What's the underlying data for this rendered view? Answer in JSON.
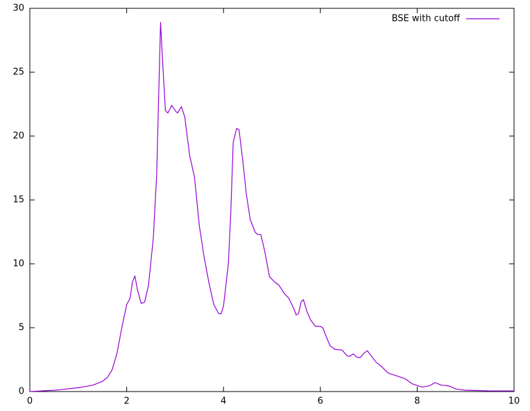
{
  "chart_data": {
    "type": "line",
    "x": [
      0,
      0.5,
      1.0,
      1.3,
      1.5,
      1.6,
      1.7,
      1.8,
      1.9,
      2.0,
      2.07,
      2.12,
      2.17,
      2.22,
      2.3,
      2.37,
      2.45,
      2.55,
      2.62,
      2.66,
      2.7,
      2.74,
      2.8,
      2.85,
      2.93,
      3.0,
      3.05,
      3.13,
      3.2,
      3.3,
      3.4,
      3.5,
      3.6,
      3.7,
      3.8,
      3.9,
      3.95,
      4.0,
      4.1,
      4.15,
      4.2,
      4.27,
      4.32,
      4.4,
      4.47,
      4.55,
      4.65,
      4.7,
      4.77,
      4.85,
      4.95,
      5.05,
      5.15,
      5.25,
      5.35,
      5.45,
      5.5,
      5.55,
      5.6,
      5.65,
      5.72,
      5.8,
      5.9,
      6.0,
      6.05,
      6.12,
      6.2,
      6.3,
      6.45,
      6.55,
      6.6,
      6.68,
      6.75,
      6.82,
      6.9,
      6.97,
      7.05,
      7.15,
      7.25,
      7.4,
      7.6,
      7.75,
      7.9,
      8.1,
      8.25,
      8.37,
      8.5,
      8.65,
      8.8,
      9.0,
      9.5,
      10
    ],
    "series": [
      {
        "name": "BSE with cutoff",
        "color": "#9400d3",
        "values": [
          0,
          0.1,
          0.3,
          0.5,
          0.8,
          1.1,
          1.7,
          3.0,
          5.0,
          6.8,
          7.3,
          8.6,
          9.05,
          8.0,
          6.9,
          7.0,
          8.3,
          12.0,
          17,
          23,
          28.9,
          26,
          22.0,
          21.8,
          22.4,
          22.0,
          21.8,
          22.3,
          21.5,
          18.5,
          16.8,
          13,
          10.5,
          8.5,
          6.8,
          6.1,
          6.1,
          6.7,
          10,
          14,
          19.5,
          20.6,
          20.5,
          18,
          15.5,
          13.5,
          12.5,
          12.3,
          12.3,
          11,
          9,
          8.6,
          8.3,
          7.7,
          7.3,
          6.5,
          6.0,
          6.1,
          7.0,
          7.2,
          6.3,
          5.6,
          5.1,
          5.1,
          5.0,
          4.3,
          3.6,
          3.3,
          3.25,
          2.8,
          2.75,
          2.95,
          2.7,
          2.65,
          3.0,
          3.2,
          2.8,
          2.3,
          2.0,
          1.45,
          1.2,
          1.0,
          0.6,
          0.35,
          0.45,
          0.7,
          0.5,
          0.45,
          0.2,
          0.1,
          0.05,
          0.05
        ]
      }
    ],
    "xlim": [
      0,
      10
    ],
    "xticks": [
      0,
      2,
      4,
      6,
      8,
      10
    ],
    "ylim": [
      0,
      30
    ],
    "yticks": [
      0,
      5,
      10,
      15,
      20,
      25,
      30
    ],
    "legend": "top-right"
  }
}
